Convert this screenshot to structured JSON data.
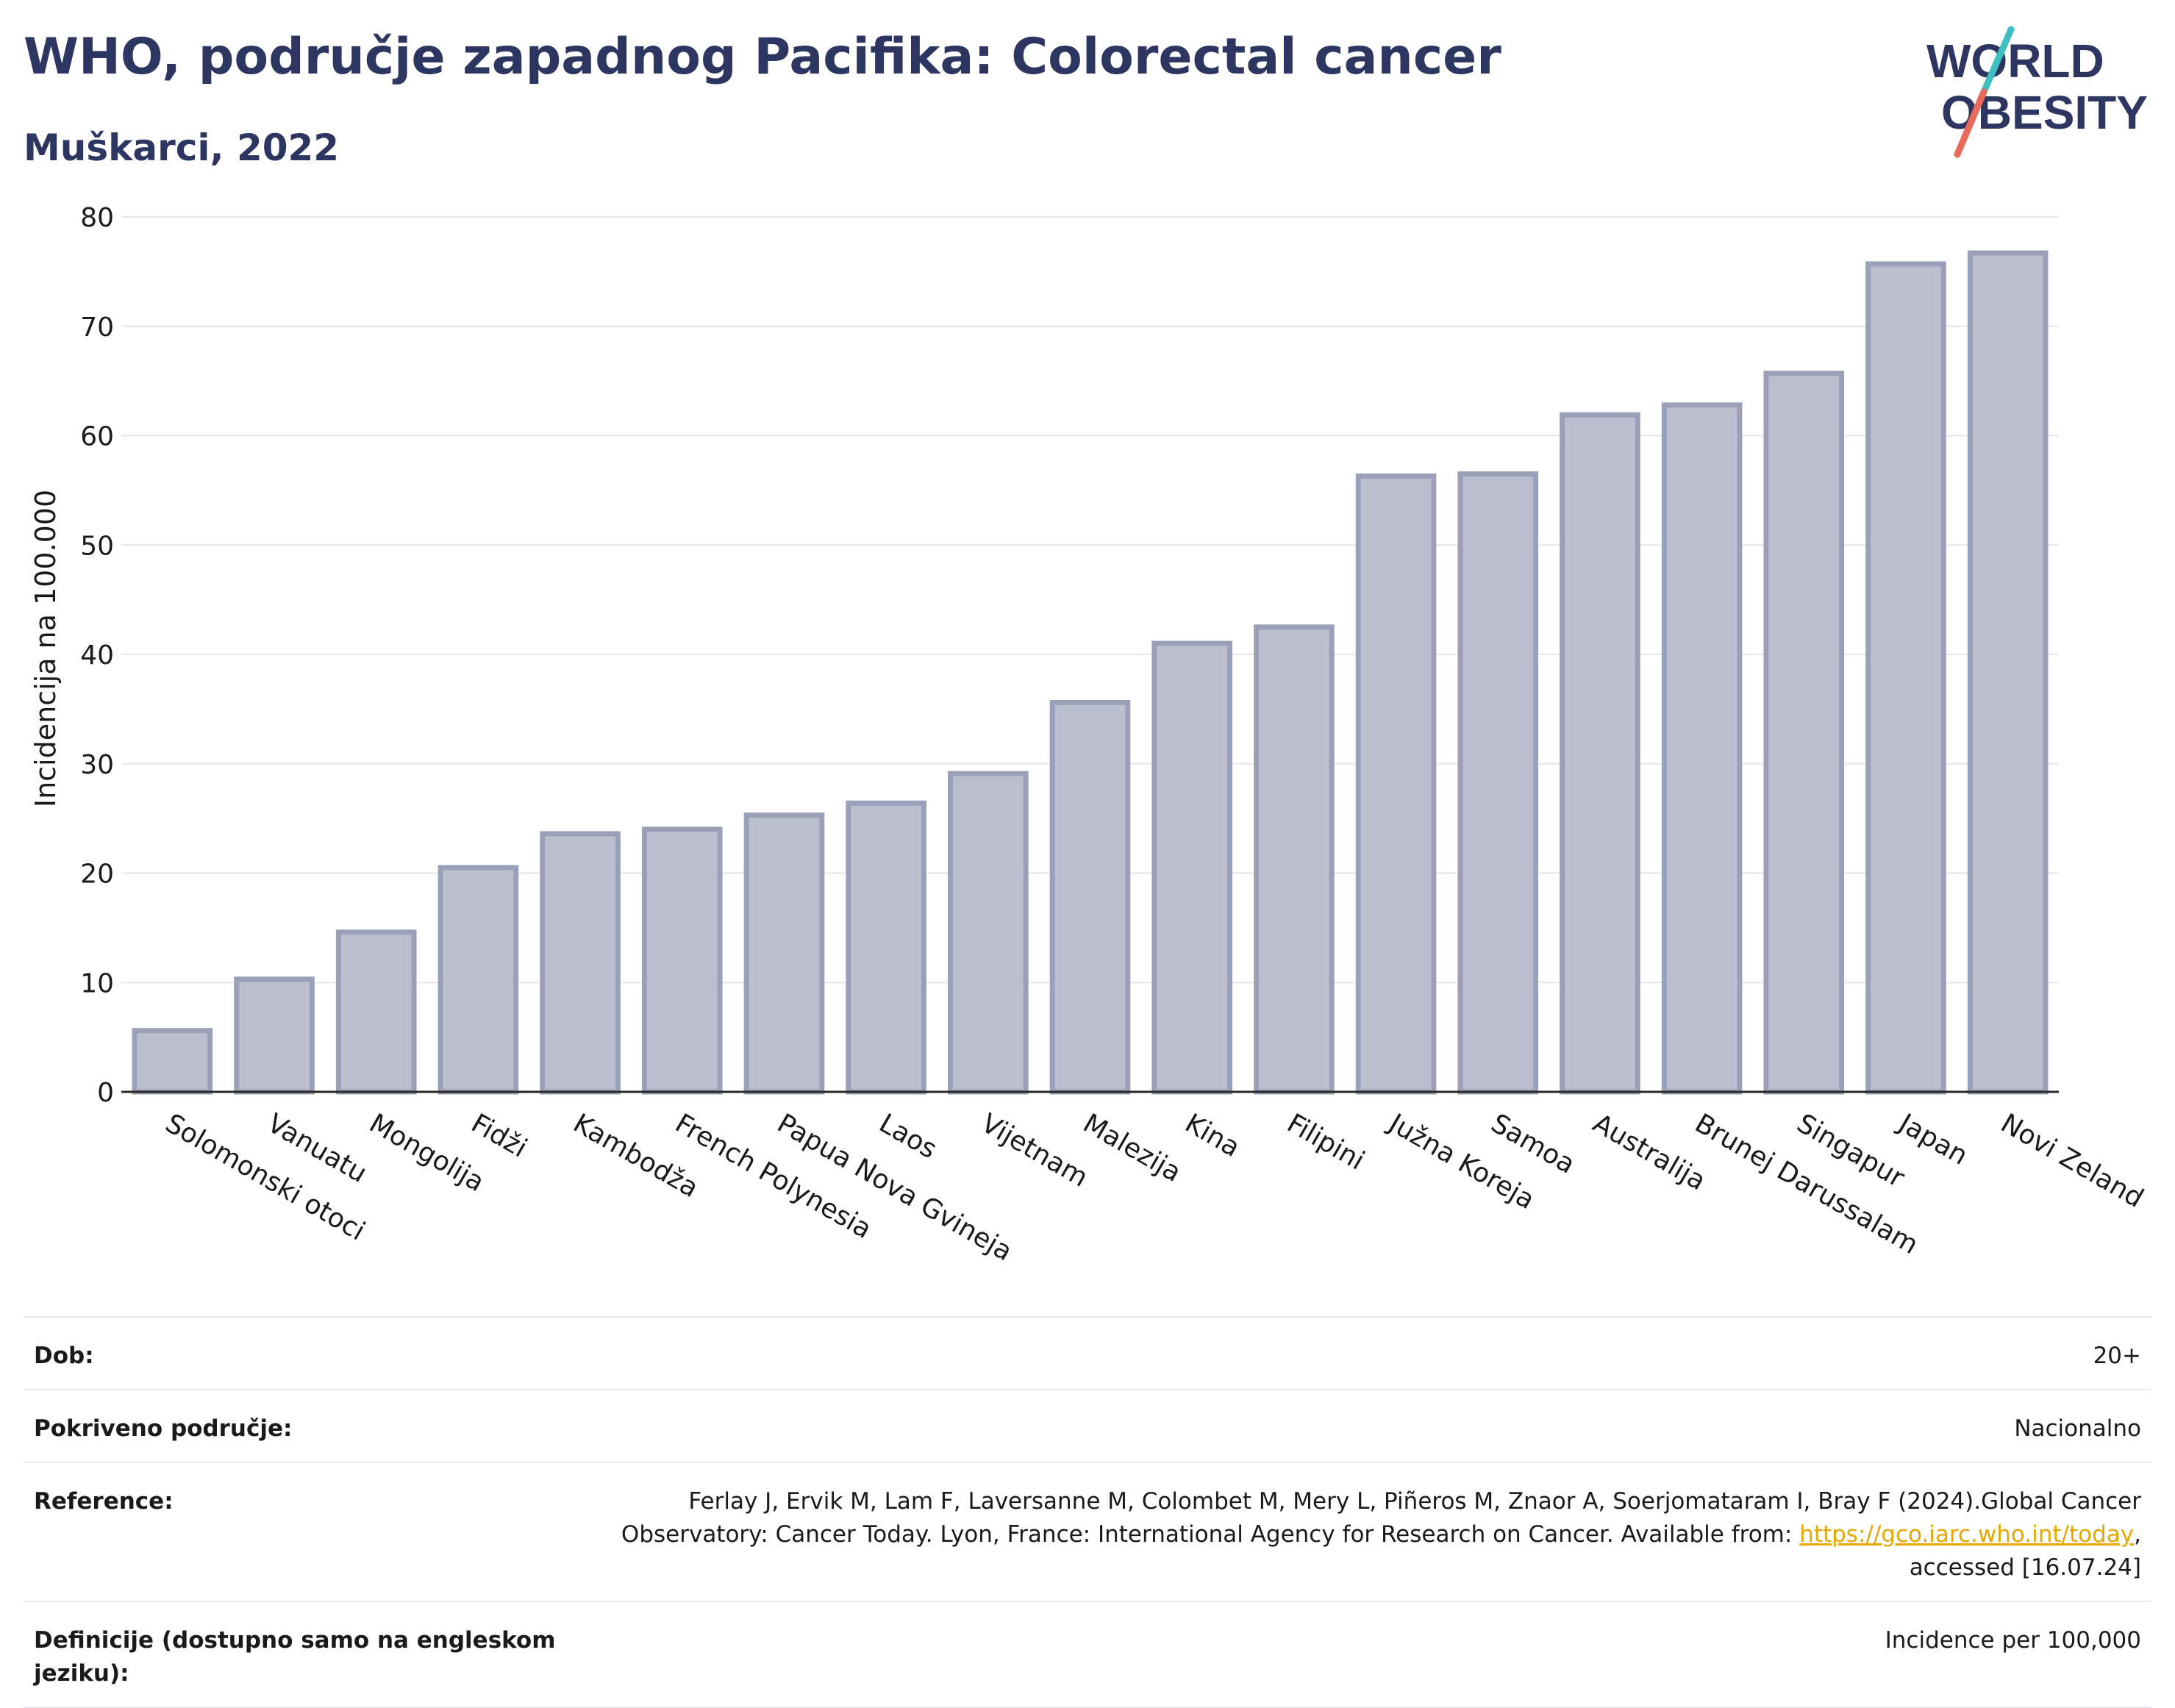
{
  "header": {
    "title": "WHO, područje zapadnog Pacifika: Colorectal cancer",
    "subtitle": "Muškarci, 2022"
  },
  "logo": {
    "line1": "WORLD",
    "line2": "OBESITY",
    "text_color": "#2d3561",
    "accent_teal": "#3fbfbf",
    "accent_coral": "#e86a5a"
  },
  "chart_data": {
    "type": "bar",
    "title": "WHO, područje zapadnog Pacifika: Colorectal cancer",
    "subtitle": "Muškarci, 2022",
    "xlabel": "",
    "ylabel": "Incidencija na 100.000",
    "ylim": [
      0,
      80
    ],
    "yticks": [
      0,
      10,
      20,
      30,
      40,
      50,
      60,
      70,
      80
    ],
    "grid": true,
    "legend": "none",
    "bar_color": "#bcbfcd",
    "bar_edge_color": "#9aa0b8",
    "categories": [
      "Solomonski otoci",
      "Vanuatu",
      "Mongolija",
      "Fidži",
      "Kambodža",
      "French Polynesia",
      "Papua Nova Gvineja",
      "Laos",
      "Vijetnam",
      "Malezija",
      "Kina",
      "Filipini",
      "Južna Koreja",
      "Samoa",
      "Australija",
      "Brunej Darussalam",
      "Singapur",
      "Japan",
      "Novi Zeland"
    ],
    "values": [
      5.6,
      10.3,
      14.6,
      20.5,
      23.6,
      24.0,
      25.3,
      26.4,
      29.1,
      35.6,
      41.0,
      42.5,
      56.3,
      56.5,
      61.9,
      62.8,
      65.7,
      75.7,
      76.7
    ]
  },
  "meta": {
    "rows": [
      {
        "label": "Dob:",
        "value": "20+"
      },
      {
        "label": "Pokriveno područje:",
        "value": "Nacionalno"
      },
      {
        "label": "Reference:",
        "value_before": "Ferlay J, Ervik M, Lam F, Laversanne M, Colombet M, Mery L, Piñeros M, Znaor A, Soerjomataram I, Bray F (2024).Global Cancer Observatory: Cancer Today. Lyon, France: International Agency for Research on Cancer. Available from: ",
        "link": "https://gco.iarc.who.int/today",
        "value_after": ", accessed [16.07.24]"
      },
      {
        "label": "Definicije (dostupno samo na engleskom jeziku):",
        "value": "Incidence per 100,000"
      }
    ]
  }
}
